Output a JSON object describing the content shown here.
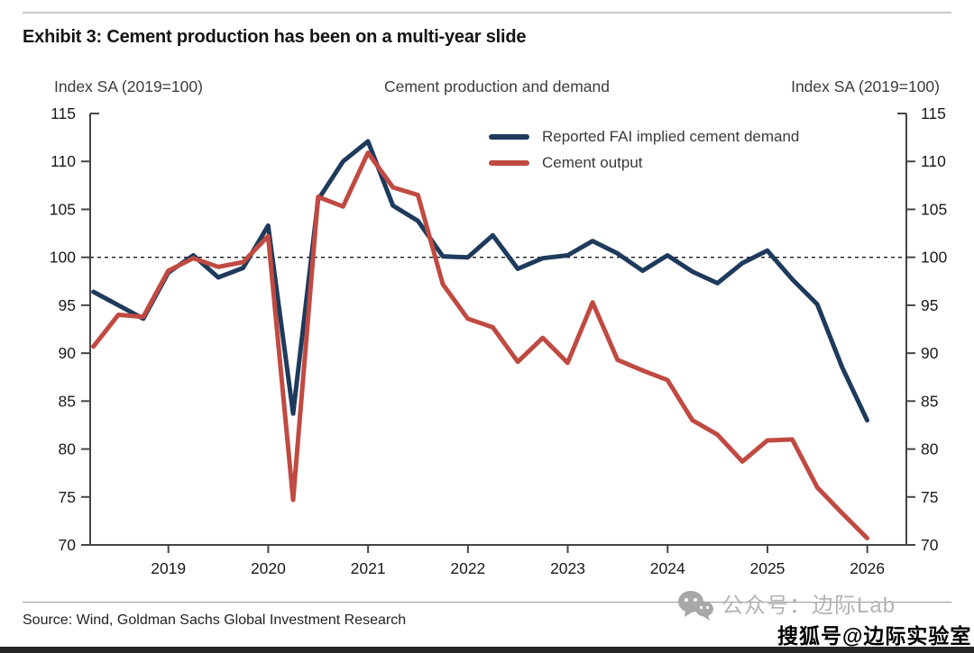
{
  "header": {
    "exhibit_title": "Exhibit 3: Cement production has been on a multi-year slide"
  },
  "chart_data": {
    "type": "line",
    "title": "Cement production and demand",
    "left_axis_label": "Index SA (2019=100)",
    "right_axis_label": "Index SA (2019=100)",
    "ylim": [
      70,
      115
    ],
    "yticks": [
      115,
      110,
      105,
      100,
      95,
      90,
      85,
      80,
      75,
      70
    ],
    "xtick_years": [
      "2019",
      "2020",
      "2021",
      "2022",
      "2023",
      "2024",
      "2025",
      "2026"
    ],
    "x_frequency": "quarterly",
    "x": [
      "2018Q2",
      "2018Q3",
      "2018Q4",
      "2019Q1",
      "2019Q2",
      "2019Q3",
      "2019Q4",
      "2020Q1",
      "2020Q2",
      "2020Q3",
      "2020Q4",
      "2021Q1",
      "2021Q2",
      "2021Q3",
      "2021Q4",
      "2022Q1",
      "2022Q2",
      "2022Q3",
      "2022Q4",
      "2023Q1",
      "2023Q2",
      "2023Q3",
      "2023Q4",
      "2024Q1",
      "2024Q2",
      "2024Q3",
      "2024Q4",
      "2025Q1",
      "2025Q2",
      "2025Q3",
      "2025Q4",
      "2026Q1"
    ],
    "reference_line": {
      "value": 100,
      "style": "dashed",
      "color": "#1a1a1a"
    },
    "grid": false,
    "legend_position": "inside-top-right",
    "series": [
      {
        "name": "Reported FAI implied cement demand",
        "color": "#1e3a5c",
        "values": [
          96.4,
          95.0,
          93.6,
          98.4,
          100.2,
          97.9,
          98.9,
          103.3,
          83.7,
          106.0,
          110.0,
          112.1,
          105.4,
          103.8,
          100.1,
          100.0,
          102.3,
          98.8,
          99.9,
          100.2,
          101.7,
          100.4,
          98.6,
          100.2,
          98.5,
          97.3,
          99.4,
          100.7,
          97.7,
          95.1,
          88.5,
          83.0
        ]
      },
      {
        "name": "Cement output",
        "color": "#c04a42",
        "values": [
          90.7,
          94.0,
          93.8,
          98.6,
          99.9,
          99.0,
          99.5,
          102.2,
          74.7,
          106.3,
          105.3,
          110.9,
          107.3,
          106.5,
          97.2,
          93.6,
          92.7,
          89.1,
          91.6,
          89.0,
          95.3,
          89.3,
          88.2,
          87.2,
          83.0,
          81.5,
          78.7,
          80.9,
          81.0,
          76.0,
          73.3,
          70.7
        ]
      }
    ],
    "axis_color": "#454545",
    "tick_label_color": "#1a1a1a"
  },
  "footer": {
    "source": "Source: Wind, Goldman Sachs Global Investment Research"
  },
  "watermarks": {
    "wechat_text": "公众号：边际Lab",
    "sohu_text": "搜狐号@边际实验室"
  }
}
